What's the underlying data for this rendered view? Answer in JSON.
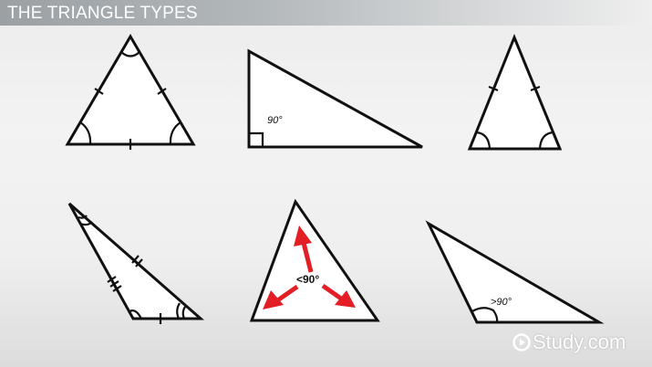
{
  "header": {
    "title": "THE TRIANGLE TYPES"
  },
  "triangles": [
    {
      "kind": "equilateral"
    },
    {
      "kind": "right",
      "angle_label": "90°"
    },
    {
      "kind": "isosceles"
    },
    {
      "kind": "scalene"
    },
    {
      "kind": "acute",
      "angle_label": "<90°"
    },
    {
      "kind": "obtuse",
      "angle_label": ">90°"
    }
  ],
  "colors": {
    "arrow": "#e31e24",
    "title_bar": "#9aa0a4"
  },
  "logo": {
    "text": "Study.com",
    "icon": "play-circle-icon"
  }
}
